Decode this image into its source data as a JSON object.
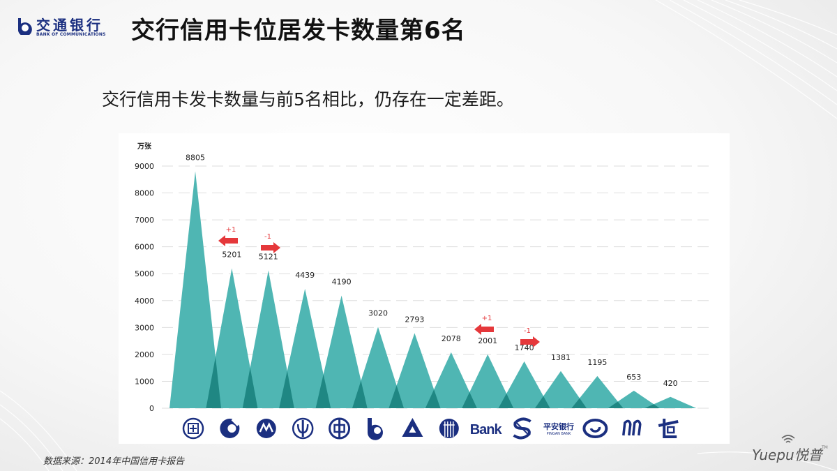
{
  "header": {
    "logo_cn": "交通银行",
    "logo_en": "BANK OF COMMUNICATIONS",
    "title": "交行信用卡位居发卡数量第6名"
  },
  "subtitle": "交行信用卡发卡数量与前5名相比，仍存在一定差距。",
  "footer": {
    "source": "数据来源：2014年中国信用卡报告",
    "brand": "Yuepu悦普",
    "brand_tm": "TM"
  },
  "colors": {
    "triangle": "#4fb6b3",
    "overlap": "#1f8783",
    "arrow": "#e5383b",
    "brand_blue": "#1b2f80",
    "grid": "#dddddd"
  },
  "chart_data": {
    "type": "bar",
    "title": "交行信用卡位居发卡数量第6名",
    "ylabel": "万张",
    "xlabel": "",
    "ylim": [
      0,
      9000
    ],
    "yticks": [
      0,
      1000,
      2000,
      3000,
      4000,
      5000,
      6000,
      7000,
      8000,
      9000
    ],
    "grid": true,
    "categories": [
      "工商银行",
      "建设银行",
      "招商银行",
      "农业银行",
      "中国银行",
      "交通银行",
      "光大银行",
      "中信银行",
      "民生银行",
      "浦发银行",
      "平安银行",
      "兴业银行",
      "华夏银行",
      "广发银行"
    ],
    "category_icons": [
      "icbc-logo-icon",
      "ccb-logo-icon",
      "cmb-logo-icon",
      "abc-logo-icon",
      "boc-logo-icon",
      "bocom-logo-icon",
      "ceb-logo-icon",
      "citic-logo-icon",
      "cmbc-bank-logo-icon",
      "spdb-logo-icon",
      "pingan-bank-logo-icon",
      "cib-logo-icon",
      "spdb-alt-logo-icon",
      "cgb-logo-icon"
    ],
    "values": [
      8805,
      5201,
      5121,
      4439,
      4190,
      3020,
      2793,
      2078,
      2001,
      1740,
      1381,
      1195,
      653,
      420
    ],
    "annotations": [
      {
        "index": 1,
        "text": "+1",
        "direction": "left"
      },
      {
        "index": 2,
        "text": "-1",
        "direction": "right"
      },
      {
        "index": 8,
        "text": "+1",
        "direction": "left"
      },
      {
        "index": 9,
        "text": "-1",
        "direction": "right"
      }
    ]
  },
  "logo_labels": {
    "bank_text": "Bank",
    "pingan_cn": "平安银行",
    "pingan_en": "PINGAN BANK"
  }
}
